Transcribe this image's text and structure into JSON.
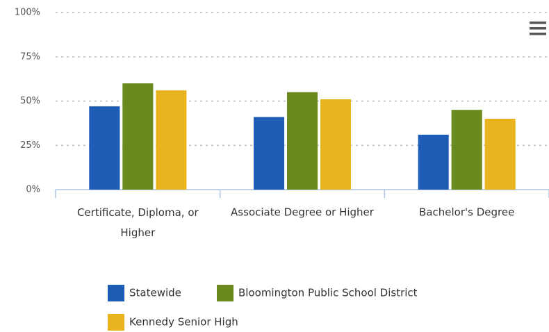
{
  "chart_data": {
    "type": "bar",
    "categories": [
      "Certificate, Diploma, or Higher",
      "Associate Degree or Higher",
      "Bachelor's Degree"
    ],
    "series": [
      {
        "name": "Statewide",
        "color": "#1f5cb5",
        "values": [
          47,
          41,
          31
        ]
      },
      {
        "name": "Bloomington Public School District",
        "color": "#6a8a1e",
        "values": [
          60,
          55,
          45
        ]
      },
      {
        "name": "Kennedy Senior High",
        "color": "#e9b31d",
        "values": [
          56,
          51,
          40
        ]
      }
    ],
    "ylim": [
      0,
      100
    ],
    "yticks": [
      {
        "value": 0,
        "label": "0%"
      },
      {
        "value": 25,
        "label": "25%"
      },
      {
        "value": 50,
        "label": "50%"
      },
      {
        "value": 75,
        "label": "75%"
      },
      {
        "value": 100,
        "label": "100%"
      }
    ],
    "grid": true
  }
}
